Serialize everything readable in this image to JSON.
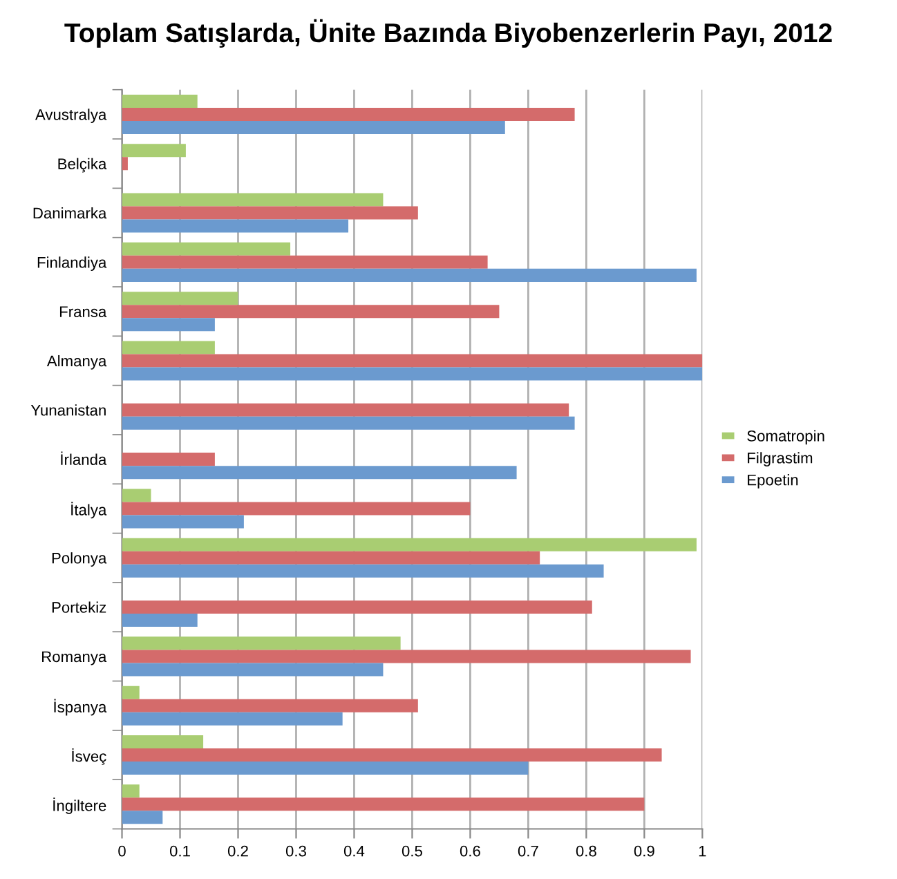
{
  "chart_data": {
    "type": "bar",
    "orientation": "horizontal",
    "title": "Toplam Satışlarda, Ünite Bazında Biyobenzerlerin Payı, 2012",
    "categories": [
      "Avustralya",
      "Belçika",
      "Danimarka",
      "Finlandiya",
      "Fransa",
      "Almanya",
      "Yunanistan",
      "İrlanda",
      "İtalya",
      "Polonya",
      "Portekiz",
      "Romanya",
      "İspanya",
      "İsveç",
      "İngiltere"
    ],
    "series": [
      {
        "name": "Somatropin",
        "color": "#a9cd72",
        "values": [
          0.13,
          0.11,
          0.45,
          0.29,
          0.2,
          0.16,
          null,
          null,
          0.05,
          0.99,
          null,
          0.48,
          0.03,
          0.14,
          0.03
        ]
      },
      {
        "name": "Filgrastim",
        "color": "#d46b6b",
        "values": [
          0.78,
          0.01,
          0.51,
          0.63,
          0.65,
          1.0,
          0.77,
          0.16,
          0.6,
          0.72,
          0.81,
          0.98,
          0.51,
          0.93,
          0.9
        ]
      },
      {
        "name": "Epoetin",
        "color": "#6b9acf",
        "values": [
          0.66,
          null,
          0.39,
          0.99,
          0.16,
          1.0,
          0.78,
          0.68,
          0.21,
          0.83,
          0.13,
          0.45,
          0.38,
          0.7,
          0.07
        ]
      }
    ],
    "xlim": [
      0,
      1
    ],
    "xticks": [
      0,
      0.1,
      0.2,
      0.3,
      0.4,
      0.5,
      0.6,
      0.7,
      0.8,
      0.9,
      1
    ],
    "grid": "x",
    "legend": "right"
  }
}
